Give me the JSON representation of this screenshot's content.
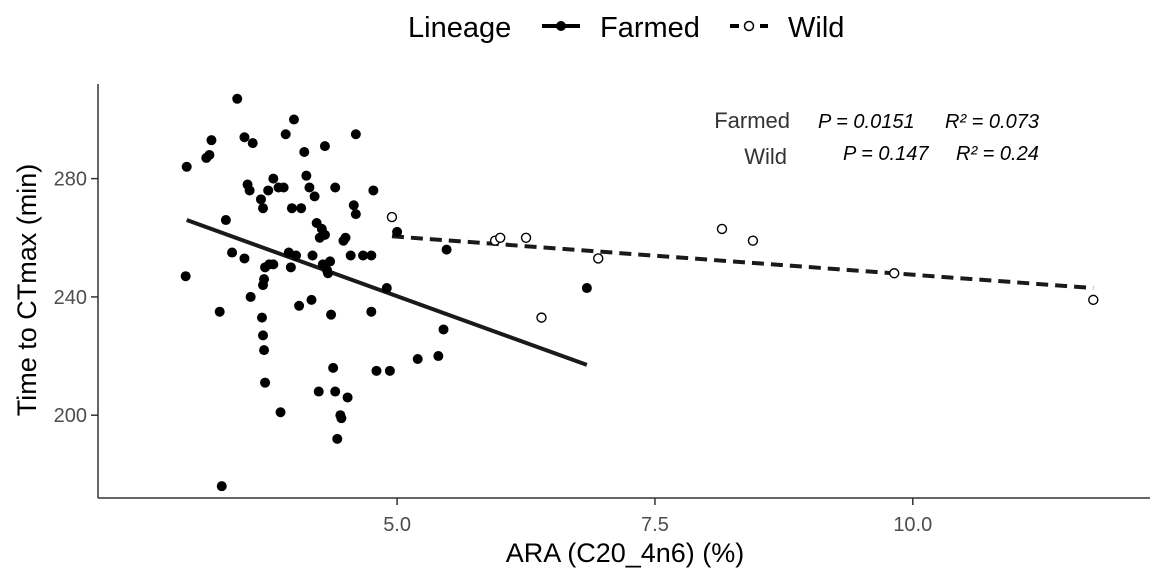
{
  "legend": {
    "title": "Lineage",
    "items": [
      {
        "label": "Farmed",
        "marker": "filled-circle",
        "line": "solid"
      },
      {
        "label": "Wild",
        "marker": "open-circle",
        "line": "dashed"
      }
    ]
  },
  "annotations": {
    "farmed": {
      "label": "Farmed",
      "p": "P = 0.0151",
      "r2": "R² = 0.073"
    },
    "wild": {
      "label": "Wild",
      "p": "P = 0.147",
      "r2": "R² = 0.24"
    }
  },
  "colors": {
    "points": "#000000",
    "line": "#1a1a1a",
    "axis": "#333333",
    "tick_label": "#4d4d4d"
  },
  "chart_data": {
    "type": "scatter",
    "xlabel": "ARA (C20_4n6) (%)",
    "ylabel": "Time to CTmax (min)",
    "xlim": [
      2.1,
      12.3
    ],
    "ylim": [
      172,
      312
    ],
    "xticks": [
      5.0,
      7.5,
      10.0
    ],
    "xtick_labels": [
      "5.0",
      "7.5",
      "10.0"
    ],
    "yticks": [
      200,
      240,
      280
    ],
    "ytick_labels": [
      "200",
      "240",
      "280"
    ],
    "grid": false,
    "legend_position": "top",
    "series": [
      {
        "name": "Farmed",
        "marker": "filled-circle",
        "points": [
          [
            2.96,
            284
          ],
          [
            2.95,
            247
          ],
          [
            3.18,
            288
          ],
          [
            3.15,
            287
          ],
          [
            3.2,
            293
          ],
          [
            3.34,
            266
          ],
          [
            3.4,
            255
          ],
          [
            3.28,
            235
          ],
          [
            3.3,
            176
          ],
          [
            3.45,
            307
          ],
          [
            3.52,
            294
          ],
          [
            3.55,
            278
          ],
          [
            3.57,
            276
          ],
          [
            3.6,
            292
          ],
          [
            3.58,
            240
          ],
          [
            3.52,
            253
          ],
          [
            3.68,
            273
          ],
          [
            3.7,
            270
          ],
          [
            3.75,
            276
          ],
          [
            3.72,
            250
          ],
          [
            3.71,
            246
          ],
          [
            3.7,
            244
          ],
          [
            3.69,
            233
          ],
          [
            3.7,
            227
          ],
          [
            3.71,
            222
          ],
          [
            3.72,
            211
          ],
          [
            3.76,
            251
          ],
          [
            3.8,
            251
          ],
          [
            3.8,
            280
          ],
          [
            3.85,
            277
          ],
          [
            3.9,
            277
          ],
          [
            3.87,
            201
          ],
          [
            3.92,
            295
          ],
          [
            3.97,
            250
          ],
          [
            3.95,
            255
          ],
          [
            4.0,
            300
          ],
          [
            3.98,
            270
          ],
          [
            4.02,
            254
          ],
          [
            4.05,
            237
          ],
          [
            4.07,
            270
          ],
          [
            4.1,
            289
          ],
          [
            4.12,
            281
          ],
          [
            4.15,
            277
          ],
          [
            4.17,
            239
          ],
          [
            4.18,
            254
          ],
          [
            4.2,
            274
          ],
          [
            4.22,
            265
          ],
          [
            4.25,
            260
          ],
          [
            4.27,
            263
          ],
          [
            4.28,
            251
          ],
          [
            4.24,
            208
          ],
          [
            4.3,
            261
          ],
          [
            4.32,
            249
          ],
          [
            4.33,
            248
          ],
          [
            4.3,
            291
          ],
          [
            4.35,
            252
          ],
          [
            4.36,
            234
          ],
          [
            4.38,
            216
          ],
          [
            4.4,
            277
          ],
          [
            4.4,
            208
          ],
          [
            4.42,
            192
          ],
          [
            4.45,
            200
          ],
          [
            4.46,
            199
          ],
          [
            4.48,
            259
          ],
          [
            4.5,
            260
          ],
          [
            4.52,
            206
          ],
          [
            4.55,
            254
          ],
          [
            4.58,
            271
          ],
          [
            4.6,
            268
          ],
          [
            4.6,
            295
          ],
          [
            4.67,
            254
          ],
          [
            4.75,
            254
          ],
          [
            4.75,
            235
          ],
          [
            4.77,
            276
          ],
          [
            4.8,
            215
          ],
          [
            4.9,
            243
          ],
          [
            4.93,
            215
          ],
          [
            5.0,
            262
          ],
          [
            5.2,
            219
          ],
          [
            5.4,
            220
          ],
          [
            5.45,
            229
          ],
          [
            5.48,
            256
          ],
          [
            6.84,
            243
          ]
        ],
        "fit": {
          "x": [
            2.96,
            6.84
          ],
          "y": [
            266,
            217
          ]
        }
      },
      {
        "name": "Wild",
        "marker": "open-circle",
        "points": [
          [
            4.95,
            267
          ],
          [
            5.95,
            259
          ],
          [
            6.0,
            260
          ],
          [
            6.25,
            260
          ],
          [
            6.4,
            233
          ],
          [
            6.95,
            253
          ],
          [
            8.15,
            263
          ],
          [
            8.45,
            259
          ],
          [
            9.82,
            248
          ],
          [
            11.75,
            239
          ]
        ],
        "fit": {
          "x": [
            4.95,
            11.75
          ],
          "y": [
            260.5,
            243
          ]
        }
      }
    ]
  }
}
